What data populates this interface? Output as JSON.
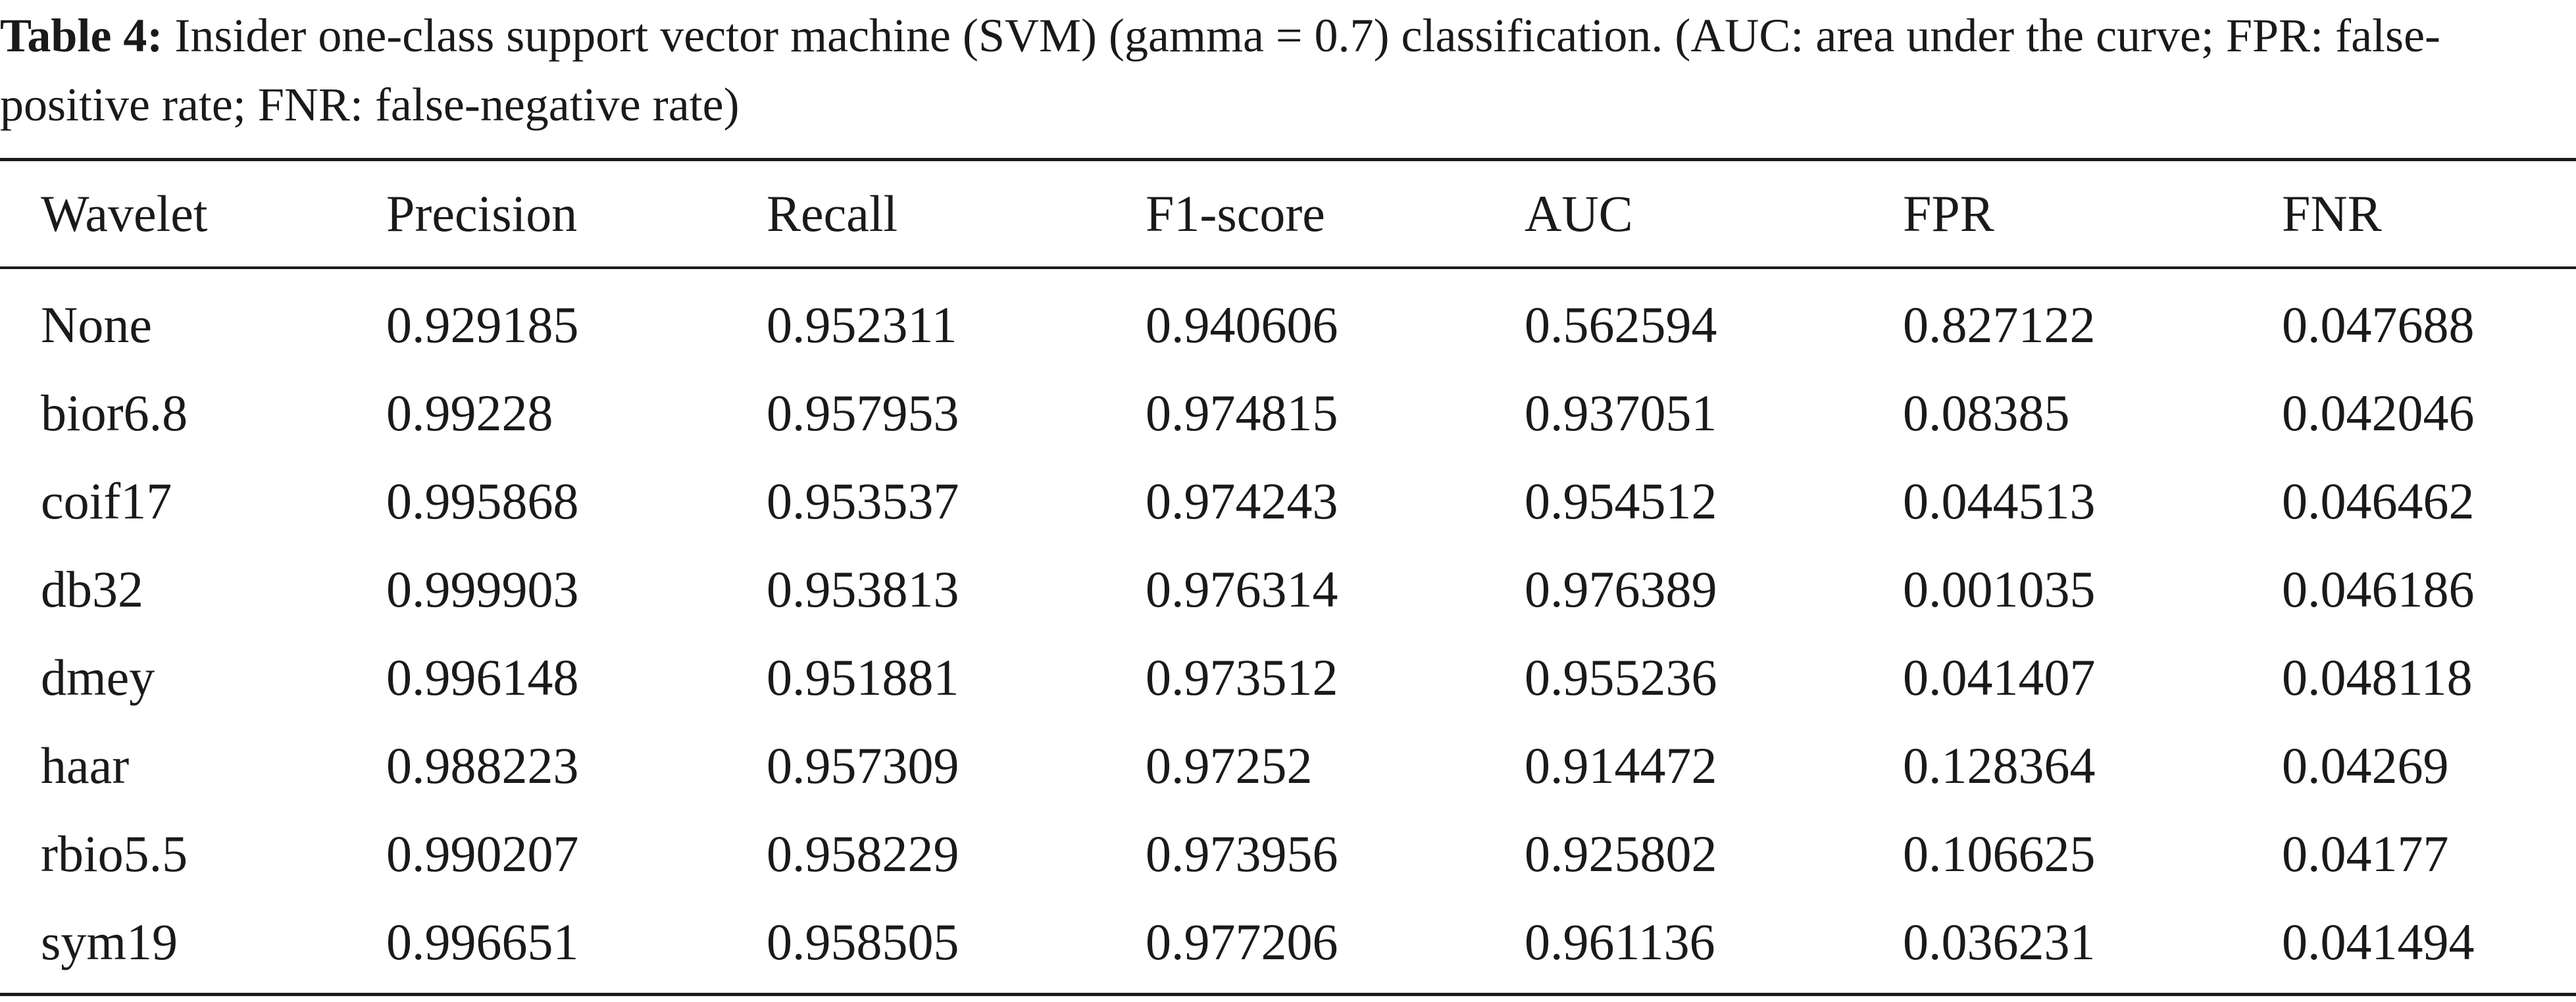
{
  "caption": {
    "label": "Table 4:",
    "text": "Insider one-class support vector machine (SVM) (gamma = 0.7) classification. (AUC: area under the curve; FPR: false-positive rate; FNR: false-negative rate)"
  },
  "table": {
    "headers": [
      "Wavelet",
      "Precision",
      "Recall",
      "F1-score",
      "AUC",
      "FPR",
      "FNR"
    ],
    "rows": [
      [
        "None",
        "0.929185",
        "0.952311",
        "0.940606",
        "0.562594",
        "0.827122",
        "0.047688"
      ],
      [
        "bior6.8",
        "0.99228",
        "0.957953",
        "0.974815",
        "0.937051",
        "0.08385",
        "0.042046"
      ],
      [
        "coif17",
        "0.995868",
        "0.953537",
        "0.974243",
        "0.954512",
        "0.044513",
        "0.046462"
      ],
      [
        "db32",
        "0.999903",
        "0.953813",
        "0.976314",
        "0.976389",
        "0.001035",
        "0.046186"
      ],
      [
        "dmey",
        "0.996148",
        "0.951881",
        "0.973512",
        "0.955236",
        "0.041407",
        "0.048118"
      ],
      [
        "haar",
        "0.988223",
        "0.957309",
        "0.97252",
        "0.914472",
        "0.128364",
        "0.04269"
      ],
      [
        "rbio5.5",
        "0.990207",
        "0.958229",
        "0.973956",
        "0.925802",
        "0.106625",
        "0.04177"
      ],
      [
        "sym19",
        "0.996651",
        "0.958505",
        "0.977206",
        "0.961136",
        "0.036231",
        "0.041494"
      ]
    ]
  }
}
